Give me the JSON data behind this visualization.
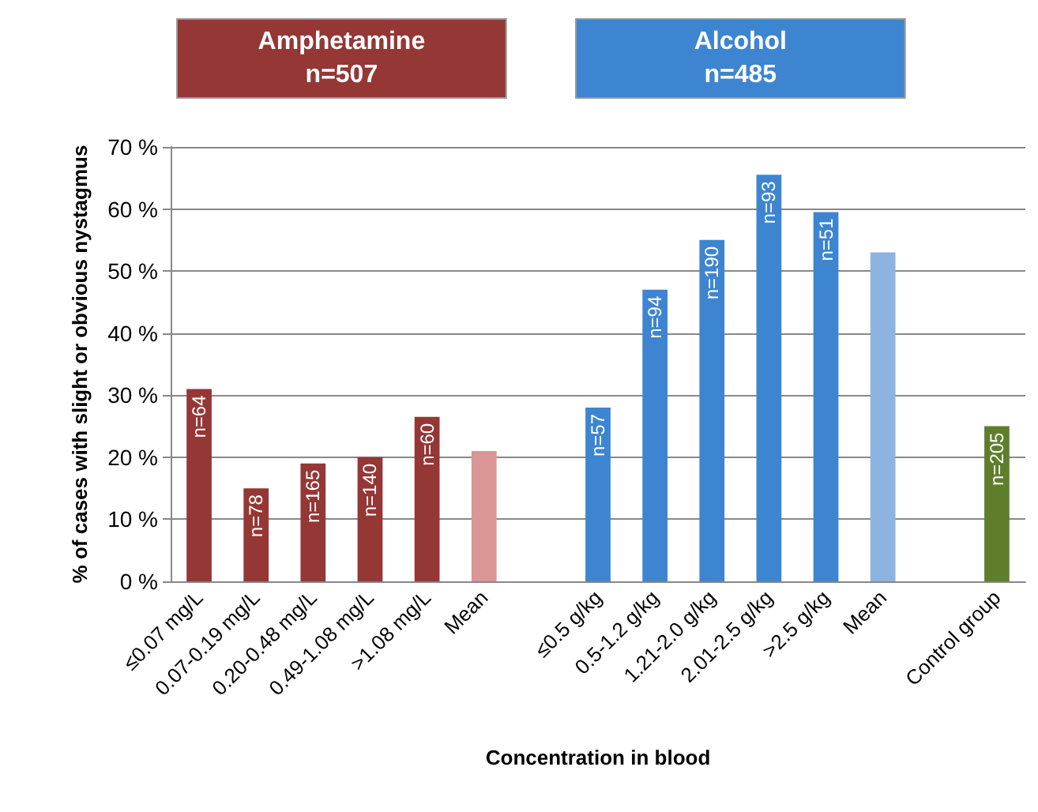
{
  "chart_data": {
    "type": "bar",
    "categories": [
      "≤0.07 mg/L",
      "0.07-0.19 mg/L",
      "0.20-0.48 mg/L",
      "0.49-1.08 mg/L",
      ">1.08 mg/L",
      "Mean",
      null,
      "≤0.5 g/kg",
      "0.5-1.2 g/kg",
      "1.21-2.0 g/kg",
      "2.01-2.5 g/kg",
      ">2.5 g/kg",
      "Mean",
      null,
      "Control group"
    ],
    "values": [
      31,
      15,
      19,
      20,
      26.5,
      21,
      null,
      28,
      47,
      55,
      65.5,
      59.5,
      53,
      null,
      25
    ],
    "colors": [
      "#953735",
      "#953735",
      "#953735",
      "#953735",
      "#953735",
      "#d99694",
      null,
      "#3d85d0",
      "#3d85d0",
      "#3d85d0",
      "#3d85d0",
      "#3d85d0",
      "#8db3e2",
      null,
      "#5f7e2c"
    ],
    "xlabel": "Concentration in blood",
    "ylabel": "% of cases with slight or obvious nystagmus",
    "annotations": [
      "Amphetamine\nn=507",
      "Alcohol\nn=485",
      {
        "text": "n=64",
        "x": "≤0.07 mg/L",
        "y": 31
      },
      {
        "text": "n=78",
        "x": "0.07-0.19 mg/L",
        "y": 15
      },
      {
        "text": "n=165",
        "x": "0.20-0.48 mg/L",
        "y": 19
      },
      {
        "text": "n=140",
        "x": "0.49-1.08 mg/L",
        "y": 20
      },
      {
        "text": "n=60",
        "x": ">1.08 mg/L",
        "y": 26.5
      },
      {
        "text": "n=57",
        "x": "≤0.5 g/kg",
        "y": 28
      },
      {
        "text": "n=94",
        "x": "0.5-1.2 g/kg",
        "y": 47
      },
      {
        "text": "n=190",
        "x": "1.21-2.0 g/kg",
        "y": 55
      },
      {
        "text": "n=93",
        "x": "2.01-2.5 g/kg",
        "y": 65.5
      },
      {
        "text": "n=51",
        "x": ">2.5 g/kg",
        "y": 59.5
      },
      {
        "text": "n=205",
        "x": "Control group",
        "y": 25
      }
    ],
    "ylim": [
      0,
      70
    ],
    "yticks": [
      {
        "value": 0,
        "label": "0 %"
      },
      {
        "value": 10,
        "label": "10 %"
      },
      {
        "value": 20,
        "label": "20 %"
      },
      {
        "value": 30,
        "label": "30 %"
      },
      {
        "value": 40,
        "label": "40 %"
      },
      {
        "value": 50,
        "label": "50 %"
      },
      {
        "value": 60,
        "label": "60 %"
      },
      {
        "value": 70,
        "label": "70 %"
      }
    ],
    "grid": "y"
  }
}
